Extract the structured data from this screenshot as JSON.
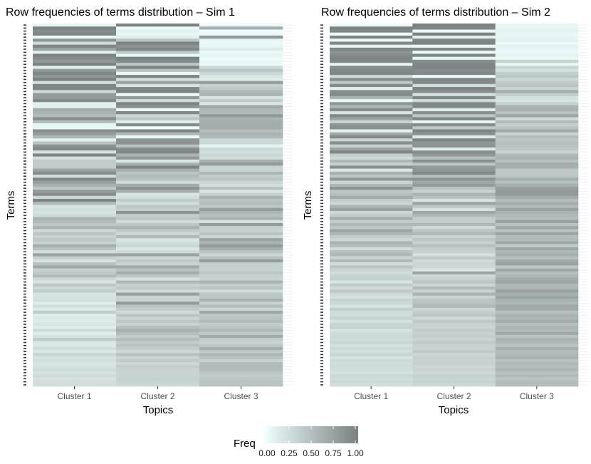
{
  "chart_data": [
    {
      "type": "heatmap",
      "title": "Row frequencies of terms distribution – Sim 1",
      "xlabel": "Topics",
      "ylabel": "Terms",
      "categories": [
        "Cluster 1",
        "Cluster 2",
        "Cluster 3"
      ],
      "y_tick_labels_visible": false,
      "row_count": 120,
      "rows": [
        [
          0.08,
          0.99,
          0.05
        ],
        [
          0.99,
          0.05,
          0.62
        ],
        [
          0.91,
          0.12,
          0.02
        ],
        [
          0.96,
          0.08,
          0.06
        ],
        [
          0.05,
          0.12,
          0.81
        ],
        [
          0.85,
          0.46,
          0.08
        ],
        [
          0.28,
          0.98,
          0.05
        ],
        [
          0.96,
          0.86,
          0.08
        ],
        [
          0.74,
          0.94,
          0.16
        ],
        [
          0.12,
          0.46,
          0.04
        ],
        [
          0.98,
          0.06,
          0.09
        ],
        [
          0.9,
          0.99,
          0.03
        ],
        [
          0.82,
          0.92,
          0.07
        ],
        [
          0.99,
          0.45,
          0.05
        ],
        [
          0.13,
          0.98,
          0.3
        ],
        [
          0.8,
          0.47,
          0.46
        ],
        [
          0.97,
          0.08,
          0.31
        ],
        [
          0.82,
          0.98,
          0.2
        ],
        [
          0.99,
          0.25,
          0.15
        ],
        [
          0.24,
          0.73,
          0.78
        ],
        [
          0.97,
          0.22,
          0.37
        ],
        [
          0.95,
          0.94,
          0.43
        ],
        [
          0.29,
          0.98,
          0.54
        ],
        [
          0.77,
          0.05,
          0.61
        ],
        [
          0.79,
          0.8,
          0.21
        ],
        [
          0.92,
          0.28,
          0.4
        ],
        [
          0.11,
          0.97,
          0.19
        ],
        [
          0.12,
          0.86,
          0.68
        ],
        [
          0.64,
          0.05,
          0.57
        ],
        [
          0.59,
          0.94,
          0.55
        ],
        [
          0.54,
          0.29,
          0.81
        ],
        [
          0.89,
          0.46,
          0.61
        ],
        [
          0.53,
          0.14,
          0.64
        ],
        [
          0.09,
          0.9,
          0.66
        ],
        [
          0.08,
          0.03,
          0.65
        ],
        [
          0.89,
          0.97,
          0.52
        ],
        [
          0.78,
          0.55,
          0.6
        ],
        [
          0.57,
          0.05,
          0.55
        ],
        [
          0.11,
          0.85,
          0.32
        ],
        [
          0.47,
          0.85,
          0.3
        ],
        [
          0.86,
          0.49,
          0.09
        ],
        [
          0.94,
          0.89,
          0.29
        ],
        [
          0.22,
          0.94,
          0.27
        ],
        [
          0.96,
          0.59,
          0.32
        ],
        [
          0.25,
          0.82,
          0.27
        ],
        [
          0.41,
          0.19,
          0.65
        ],
        [
          0.39,
          0.62,
          0.79
        ],
        [
          0.42,
          0.97,
          0.35
        ],
        [
          0.73,
          0.64,
          0.34
        ],
        [
          0.91,
          0.46,
          0.57
        ],
        [
          0.26,
          0.54,
          0.4
        ],
        [
          0.95,
          0.47,
          0.46
        ],
        [
          0.76,
          0.28,
          0.33
        ],
        [
          0.62,
          0.66,
          0.26
        ],
        [
          0.44,
          0.86,
          0.48
        ],
        [
          0.8,
          0.64,
          0.21
        ],
        [
          0.89,
          0.21,
          0.38
        ],
        [
          0.32,
          0.27,
          0.6
        ],
        [
          0.96,
          0.41,
          0.47
        ],
        [
          0.53,
          0.27,
          0.52
        ],
        [
          0.23,
          0.44,
          0.44
        ],
        [
          0.26,
          0.39,
          0.78
        ],
        [
          0.22,
          0.84,
          0.58
        ],
        [
          0.29,
          0.39,
          0.49
        ],
        [
          0.59,
          0.46,
          0.61
        ],
        [
          0.54,
          0.28,
          0.24
        ],
        [
          0.44,
          0.45,
          0.78
        ],
        [
          0.61,
          0.6,
          0.38
        ],
        [
          0.3,
          0.41,
          0.36
        ],
        [
          0.46,
          0.32,
          0.47
        ],
        [
          0.35,
          0.56,
          0.32
        ],
        [
          0.44,
          0.21,
          0.73
        ],
        [
          0.37,
          0.26,
          0.6
        ],
        [
          0.63,
          0.33,
          0.79
        ],
        [
          0.49,
          0.2,
          0.64
        ],
        [
          0.26,
          0.3,
          0.47
        ],
        [
          0.73,
          0.73,
          0.31
        ],
        [
          0.38,
          0.31,
          0.5
        ],
        [
          0.24,
          0.42,
          0.79
        ],
        [
          0.48,
          0.33,
          0.38
        ],
        [
          0.67,
          0.67,
          0.38
        ],
        [
          0.37,
          0.48,
          0.37
        ],
        [
          0.42,
          0.63,
          0.45
        ],
        [
          0.54,
          0.44,
          0.37
        ],
        [
          0.31,
          0.24,
          0.36
        ],
        [
          0.21,
          0.57,
          0.6
        ],
        [
          0.44,
          0.36,
          0.4
        ],
        [
          0.3,
          0.42,
          0.46
        ],
        [
          0.39,
          0.29,
          0.27
        ],
        [
          0.22,
          0.75,
          0.44
        ],
        [
          0.22,
          0.35,
          0.45
        ],
        [
          0.25,
          0.35,
          0.62
        ],
        [
          0.15,
          0.8,
          0.36
        ],
        [
          0.27,
          0.47,
          0.52
        ],
        [
          0.17,
          0.41,
          0.32
        ],
        [
          0.41,
          0.28,
          0.7
        ],
        [
          0.14,
          0.46,
          0.43
        ],
        [
          0.18,
          0.33,
          0.47
        ],
        [
          0.15,
          0.45,
          0.53
        ],
        [
          0.21,
          0.34,
          0.4
        ],
        [
          0.14,
          0.52,
          0.46
        ],
        [
          0.3,
          0.62,
          0.55
        ],
        [
          0.14,
          0.52,
          0.42
        ],
        [
          0.24,
          0.41,
          0.66
        ],
        [
          0.41,
          0.53,
          0.39
        ],
        [
          0.19,
          0.41,
          0.35
        ],
        [
          0.18,
          0.47,
          0.44
        ],
        [
          0.27,
          0.39,
          0.64
        ],
        [
          0.2,
          0.31,
          0.43
        ],
        [
          0.33,
          0.48,
          0.57
        ],
        [
          0.24,
          0.33,
          0.49
        ],
        [
          0.26,
          0.42,
          0.36
        ],
        [
          0.21,
          0.31,
          0.53
        ],
        [
          0.24,
          0.39,
          0.54
        ],
        [
          0.28,
          0.35,
          0.52
        ],
        [
          0.23,
          0.35,
          0.46
        ],
        [
          0.29,
          0.34,
          0.41
        ],
        [
          0.23,
          0.36,
          0.44
        ],
        [
          0.26,
          0.34,
          0.46
        ],
        [
          0.27,
          0.31,
          0.47
        ]
      ]
    },
    {
      "type": "heatmap",
      "title": "Row frequencies of terms distribution – Sim 2",
      "xlabel": "Topics",
      "ylabel": "Terms",
      "categories": [
        "Cluster 1",
        "Cluster 2",
        "Cluster 3"
      ],
      "y_tick_labels_visible": false,
      "row_count": 120,
      "rows": [
        [
          0.05,
          0.99,
          0.07
        ],
        [
          0.98,
          0.96,
          0.08
        ],
        [
          0.94,
          0.06,
          0.1
        ],
        [
          0.05,
          0.98,
          0.07
        ],
        [
          0.97,
          0.12,
          0.09
        ],
        [
          0.07,
          0.96,
          0.1
        ],
        [
          0.94,
          0.98,
          0.05
        ],
        [
          0.1,
          0.07,
          0.11
        ],
        [
          0.96,
          0.92,
          0.08
        ],
        [
          0.85,
          0.05,
          0.06
        ],
        [
          0.91,
          0.97,
          0.1
        ],
        [
          0.97,
          0.09,
          0.06
        ],
        [
          0.94,
          0.9,
          0.36
        ],
        [
          0.1,
          0.96,
          0.08
        ],
        [
          0.89,
          0.97,
          0.34
        ],
        [
          0.94,
          0.91,
          0.24
        ],
        [
          0.97,
          0.94,
          0.39
        ],
        [
          0.3,
          0.05,
          0.45
        ],
        [
          0.9,
          0.95,
          0.32
        ],
        [
          0.43,
          0.93,
          0.42
        ],
        [
          0.91,
          0.28,
          0.47
        ],
        [
          0.12,
          0.98,
          0.35
        ],
        [
          0.89,
          0.89,
          0.64
        ],
        [
          0.92,
          0.23,
          0.41
        ],
        [
          0.59,
          0.95,
          0.24
        ],
        [
          0.09,
          0.28,
          0.22
        ],
        [
          0.83,
          0.94,
          0.36
        ],
        [
          0.57,
          0.92,
          0.58
        ],
        [
          0.91,
          0.14,
          0.62
        ],
        [
          0.23,
          0.88,
          0.49
        ],
        [
          0.94,
          0.45,
          0.71
        ],
        [
          0.73,
          0.97,
          0.29
        ],
        [
          0.33,
          0.07,
          0.54
        ],
        [
          0.84,
          0.89,
          0.38
        ],
        [
          0.88,
          0.42,
          0.47
        ],
        [
          0.12,
          0.96,
          0.67
        ],
        [
          0.68,
          0.85,
          0.35
        ],
        [
          0.93,
          0.16,
          0.52
        ],
        [
          0.33,
          0.97,
          0.46
        ],
        [
          0.9,
          0.83,
          0.5
        ],
        [
          0.36,
          0.86,
          0.48
        ],
        [
          0.72,
          0.15,
          0.45
        ],
        [
          0.96,
          0.9,
          0.35
        ],
        [
          0.4,
          0.8,
          0.55
        ],
        [
          0.29,
          0.48,
          0.61
        ],
        [
          0.56,
          0.89,
          0.5
        ],
        [
          0.36,
          0.45,
          0.65
        ],
        [
          0.88,
          0.79,
          0.62
        ],
        [
          0.2,
          0.83,
          0.44
        ],
        [
          0.62,
          0.94,
          0.43
        ],
        [
          0.45,
          0.51,
          0.46
        ],
        [
          0.81,
          0.85,
          0.64
        ],
        [
          0.33,
          0.69,
          0.5
        ],
        [
          0.55,
          0.78,
          0.63
        ],
        [
          0.85,
          0.48,
          0.77
        ],
        [
          0.44,
          0.35,
          0.8
        ],
        [
          0.51,
          0.59,
          0.8
        ],
        [
          0.67,
          0.48,
          0.66
        ],
        [
          0.41,
          0.21,
          0.53
        ],
        [
          0.32,
          0.72,
          0.65
        ],
        [
          0.58,
          0.45,
          0.55
        ],
        [
          0.74,
          0.24,
          0.73
        ],
        [
          0.31,
          0.69,
          0.59
        ],
        [
          0.4,
          0.56,
          0.55
        ],
        [
          0.63,
          0.39,
          0.52
        ],
        [
          0.39,
          0.4,
          0.75
        ],
        [
          0.56,
          0.57,
          0.47
        ],
        [
          0.43,
          0.28,
          0.69
        ],
        [
          0.71,
          0.46,
          0.48
        ],
        [
          0.58,
          0.56,
          0.71
        ],
        [
          0.41,
          0.34,
          0.53
        ],
        [
          0.31,
          0.46,
          0.54
        ],
        [
          0.59,
          0.35,
          0.68
        ],
        [
          0.52,
          0.51,
          0.4
        ],
        [
          0.28,
          0.39,
          0.7
        ],
        [
          0.5,
          0.37,
          0.55
        ],
        [
          0.56,
          0.24,
          0.64
        ],
        [
          0.33,
          0.44,
          0.49
        ],
        [
          0.54,
          0.28,
          0.66
        ],
        [
          0.26,
          0.33,
          0.73
        ],
        [
          0.46,
          0.31,
          0.44
        ],
        [
          0.33,
          0.21,
          0.7
        ],
        [
          0.28,
          0.71,
          0.51
        ],
        [
          0.34,
          0.29,
          0.57
        ],
        [
          0.37,
          0.37,
          0.65
        ],
        [
          0.21,
          0.45,
          0.71
        ],
        [
          0.41,
          0.32,
          0.56
        ],
        [
          0.27,
          0.55,
          0.58
        ],
        [
          0.43,
          0.35,
          0.75
        ],
        [
          0.29,
          0.58,
          0.62
        ],
        [
          0.24,
          0.34,
          0.71
        ],
        [
          0.35,
          0.46,
          0.61
        ],
        [
          0.31,
          0.48,
          0.55
        ],
        [
          0.21,
          0.56,
          0.68
        ],
        [
          0.38,
          0.32,
          0.66
        ],
        [
          0.27,
          0.39,
          0.5
        ],
        [
          0.28,
          0.45,
          0.6
        ],
        [
          0.35,
          0.3,
          0.57
        ],
        [
          0.24,
          0.43,
          0.67
        ],
        [
          0.33,
          0.36,
          0.5
        ],
        [
          0.37,
          0.33,
          0.59
        ],
        [
          0.22,
          0.41,
          0.55
        ],
        [
          0.28,
          0.35,
          0.68
        ],
        [
          0.31,
          0.4,
          0.48
        ],
        [
          0.27,
          0.33,
          0.61
        ],
        [
          0.33,
          0.41,
          0.56
        ],
        [
          0.24,
          0.36,
          0.47
        ],
        [
          0.29,
          0.34,
          0.63
        ],
        [
          0.25,
          0.42,
          0.52
        ],
        [
          0.33,
          0.31,
          0.55
        ],
        [
          0.22,
          0.37,
          0.61
        ],
        [
          0.3,
          0.34,
          0.49
        ],
        [
          0.26,
          0.36,
          0.56
        ],
        [
          0.29,
          0.32,
          0.51
        ],
        [
          0.27,
          0.35,
          0.58
        ],
        [
          0.24,
          0.3,
          0.5
        ],
        [
          0.31,
          0.36,
          0.55
        ],
        [
          0.27,
          0.33,
          0.48
        ],
        [
          0.29,
          0.35,
          0.53
        ],
        [
          0.26,
          0.31,
          0.52
        ]
      ]
    }
  ],
  "legend": {
    "title": "Freq",
    "breaks": [
      "0.00",
      "0.25",
      "0.50",
      "0.75",
      "1.00"
    ],
    "range": [
      0,
      1
    ],
    "color_low": "#f0ffff",
    "color_high": "#7b8080"
  }
}
